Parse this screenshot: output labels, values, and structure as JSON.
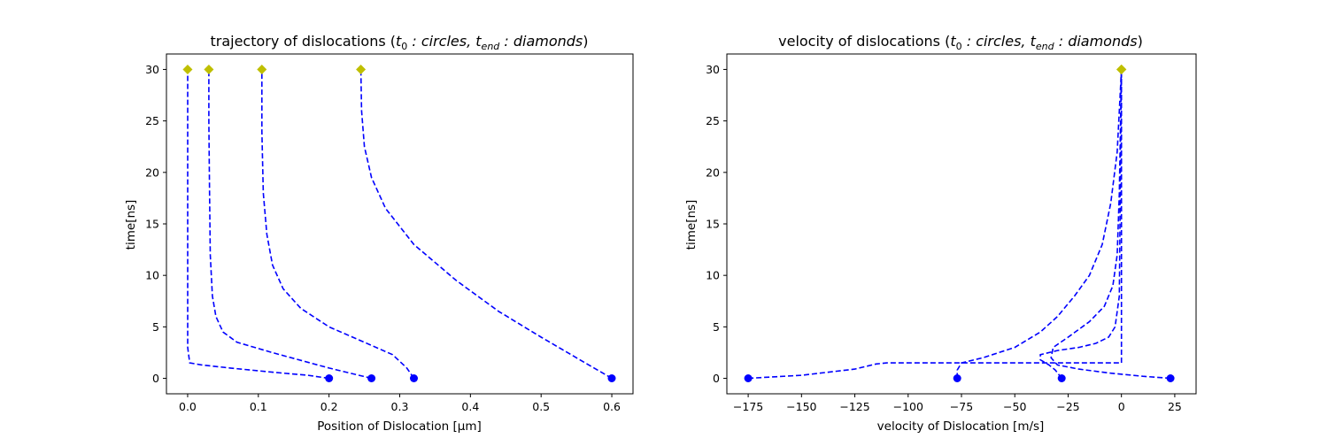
{
  "chart_data": [
    {
      "type": "line",
      "title": "trajectory of dislocations ($t_0: circles, t_{end}: diamonds$)",
      "title_parts": {
        "lead": "trajectory of dislocations (",
        "t0": "t",
        "t0_sub": "0",
        "mid1": " : circles, ",
        "tend": "t",
        "tend_sub": "end",
        "mid2": " : diamonds",
        "tail": ")"
      },
      "xlabel": "Position of Dislocation [μm]",
      "ylabel": "time[ns]",
      "xlim": [
        -0.03,
        0.63
      ],
      "ylim": [
        -1.5,
        31.5
      ],
      "xticks": [
        0.0,
        0.1,
        0.2,
        0.3,
        0.4,
        0.5,
        0.6
      ],
      "xtick_labels": [
        "0.0",
        "0.1",
        "0.2",
        "0.3",
        "0.4",
        "0.5",
        "0.6"
      ],
      "yticks": [
        0,
        5,
        10,
        15,
        20,
        25,
        30
      ],
      "ytick_labels": [
        "0",
        "5",
        "10",
        "15",
        "20",
        "25",
        "30"
      ],
      "line_color": "#0000ff",
      "start_marker_color": "#0000ff",
      "end_marker_color": "#bfbf00",
      "series": [
        {
          "x": [
            0.2,
            0.17,
            0.12,
            0.06,
            0.02,
            0.003,
            0.0,
            0.0,
            0.0,
            0.0,
            0.0
          ],
          "y": [
            0,
            0.3,
            0.6,
            1.0,
            1.3,
            1.5,
            3,
            8,
            15,
            25,
            30
          ]
        },
        {
          "x": [
            0.26,
            0.2,
            0.12,
            0.07,
            0.05,
            0.04,
            0.035,
            0.032,
            0.031,
            0.03,
            0.03
          ],
          "y": [
            0,
            1,
            2.5,
            3.5,
            4.5,
            6,
            8,
            12,
            18,
            25,
            30
          ]
        },
        {
          "x": [
            0.32,
            0.31,
            0.29,
            0.25,
            0.2,
            0.16,
            0.135,
            0.12,
            0.112,
            0.107,
            0.105,
            0.105
          ],
          "y": [
            0,
            1,
            2.3,
            3.5,
            5,
            6.8,
            8.7,
            11,
            14,
            18,
            24,
            30
          ]
        },
        {
          "x": [
            0.6,
            0.55,
            0.5,
            0.44,
            0.38,
            0.32,
            0.28,
            0.26,
            0.25,
            0.246,
            0.245
          ],
          "y": [
            0,
            2,
            4,
            6.5,
            9.5,
            13,
            16.5,
            19.5,
            22.5,
            26,
            30
          ]
        }
      ]
    },
    {
      "type": "line",
      "title": "velocity of dislocations ($t_0: circles, t_{end}: diamonds$)",
      "title_parts": {
        "lead": "velocity of dislocations (",
        "t0": "t",
        "t0_sub": "0",
        "mid1": " : circles, ",
        "tend": "t",
        "tend_sub": "end",
        "mid2": " : diamonds",
        "tail": ")"
      },
      "xlabel": "velocity of Dislocation [m/s]",
      "ylabel": "time[ns]",
      "xlim": [
        -185,
        35
      ],
      "ylim": [
        -1.5,
        31.5
      ],
      "xticks": [
        -175,
        -150,
        -125,
        -100,
        -75,
        -50,
        -25,
        0,
        25
      ],
      "xtick_labels": [
        "−175",
        "−150",
        "−125",
        "−100",
        "−75",
        "−50",
        "−25",
        "0",
        "25"
      ],
      "yticks": [
        0,
        5,
        10,
        15,
        20,
        25,
        30
      ],
      "ytick_labels": [
        "0",
        "5",
        "10",
        "15",
        "20",
        "25",
        "30"
      ],
      "line_color": "#0000ff",
      "start_marker_color": "#0000ff",
      "end_marker_color": "#bfbf00",
      "series": [
        {
          "x": [
            -175,
            -150,
            -125,
            -115,
            -110,
            -60,
            -5,
            0,
            0,
            0
          ],
          "y": [
            0,
            0.3,
            0.9,
            1.4,
            1.5,
            1.5,
            1.5,
            1.5,
            5,
            30
          ]
        },
        {
          "x": [
            23,
            10,
            -5,
            -20,
            -30,
            -33,
            -32,
            -25,
            -15,
            -8,
            -4,
            -2,
            -1,
            0
          ],
          "y": [
            0,
            0.2,
            0.5,
            0.9,
            1.3,
            2.0,
            3.0,
            4.0,
            5.5,
            7.0,
            9.0,
            12,
            18,
            30
          ]
        },
        {
          "x": [
            -28,
            -31,
            -34,
            -38,
            -38,
            -30,
            -20,
            -12,
            -6,
            -3,
            -1,
            0
          ],
          "y": [
            0,
            0.8,
            1.3,
            1.8,
            2.3,
            2.7,
            3.0,
            3.4,
            4,
            5,
            8,
            30
          ]
        },
        {
          "x": [
            -77,
            -77,
            -75,
            -65,
            -50,
            -38,
            -30,
            -22,
            -15,
            -9,
            -5,
            -2,
            0
          ],
          "y": [
            0,
            0.8,
            1.5,
            2.0,
            3.0,
            4.5,
            6,
            8,
            10,
            13,
            17,
            22,
            30
          ]
        }
      ]
    }
  ]
}
